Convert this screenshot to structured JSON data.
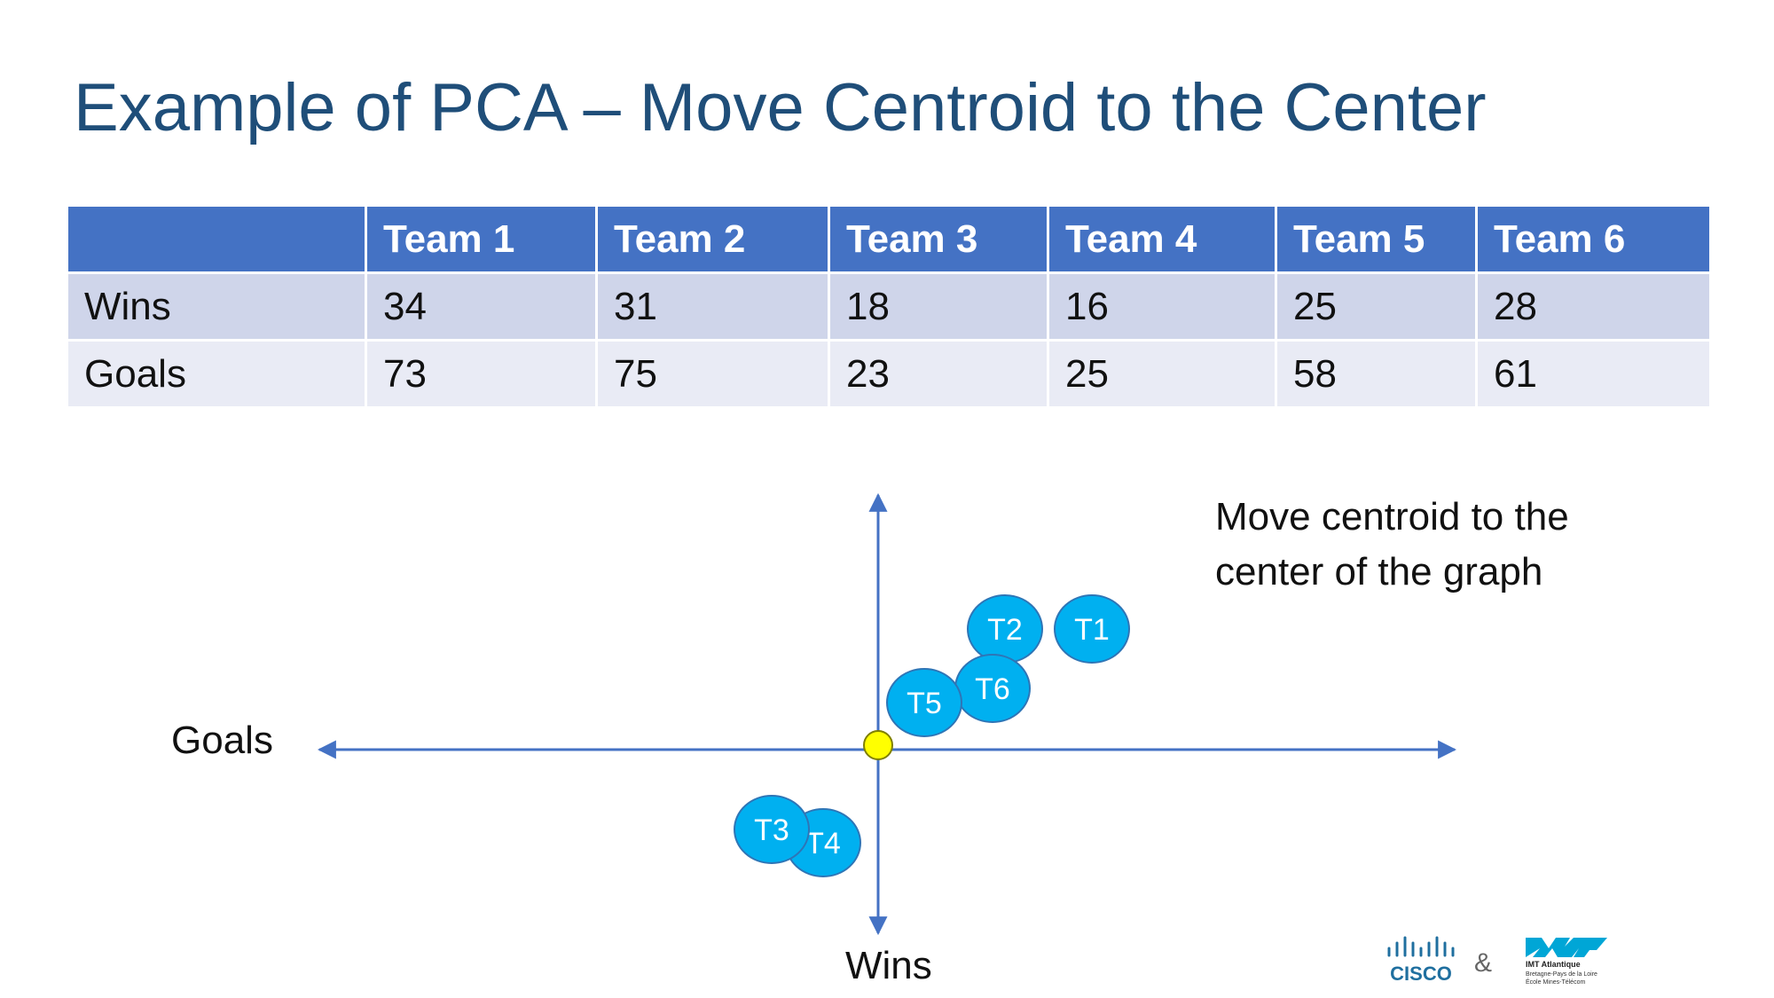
{
  "slide": {
    "title": "Example of PCA – Move Centroid to the Center"
  },
  "table": {
    "headers": [
      "",
      "Team 1",
      "Team 2",
      "Team 3",
      "Team 4",
      "Team 5",
      "Team 6"
    ],
    "rows": [
      {
        "label": "Wins",
        "values": [
          "34",
          "31",
          "18",
          "16",
          "25",
          "28"
        ]
      },
      {
        "label": "Goals",
        "values": [
          "73",
          "75",
          "23",
          "25",
          "58",
          "61"
        ]
      }
    ]
  },
  "diagram": {
    "x_axis_label": "Goals",
    "y_axis_label": "Wins",
    "note_line1": "Move centroid to the",
    "note_line2": "center of the graph",
    "points": [
      {
        "label": "T1"
      },
      {
        "label": "T2"
      },
      {
        "label": "T3"
      },
      {
        "label": "T4"
      },
      {
        "label": "T5"
      },
      {
        "label": "T6"
      }
    ],
    "colors": {
      "axis": "#4472c4",
      "team_fill": "#00b0f0",
      "team_stroke": "#2e75b6",
      "centroid_fill": "#ffff00",
      "centroid_stroke": "#7f7f00"
    }
  },
  "footer": {
    "cisco_text": "CISCO",
    "ampersand": "&",
    "imt_name": "IMT Atlantique",
    "imt_sub1": "Bretagne-Pays de la Loire",
    "imt_sub2": "École Mines-Télécom"
  }
}
